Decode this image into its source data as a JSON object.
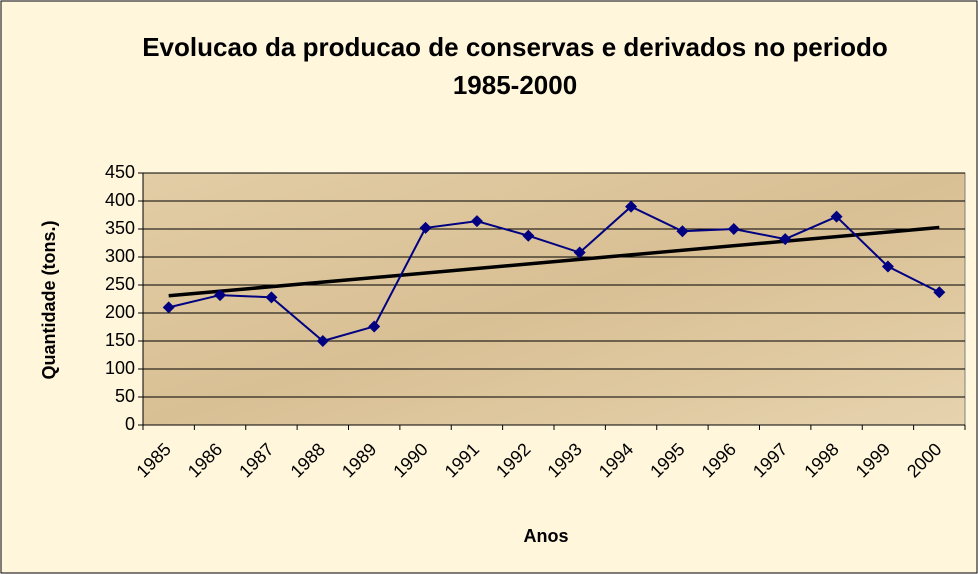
{
  "chart_data": {
    "type": "line",
    "title": "Evolucao da producao de conservas e derivados no periodo 1985-2000",
    "x_label": "Anos",
    "y_label": "Quantidade (tons.)",
    "categories": [
      "1985",
      "1986",
      "1987",
      "1988",
      "1989",
      "1990",
      "1991",
      "1992",
      "1993",
      "1994",
      "1995",
      "1996",
      "1997",
      "1998",
      "1999",
      "2000"
    ],
    "values": [
      210,
      232,
      228,
      150,
      176,
      352,
      364,
      338,
      308,
      390,
      346,
      350,
      332,
      372,
      283,
      237
    ],
    "color": "#000080",
    "trendline": true,
    "ylim": [
      0,
      450
    ],
    "yticks": [
      0,
      50,
      100,
      150,
      200,
      250,
      300,
      350,
      400,
      450
    ],
    "grid": true
  }
}
